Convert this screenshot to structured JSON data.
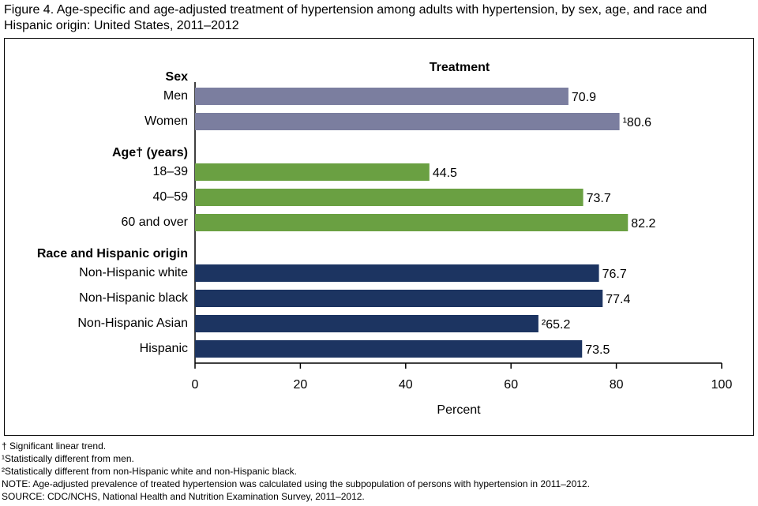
{
  "chart_data": {
    "type": "grouped-hbar",
    "title": "Figure 4. Age-specific and age-adjusted treatment of hypertension among adults with hypertension, by sex, age, and race and Hispanic origin: United States, 2011–2012",
    "subtitle": "Treatment",
    "x_label": "Percent",
    "xlim": [
      0,
      100
    ],
    "xticks": [
      0,
      20,
      40,
      60,
      80,
      100
    ],
    "groups": [
      {
        "name": "Sex",
        "color": "#7b7e9f",
        "categories": [
          "Men",
          "Women"
        ],
        "values": [
          70.9,
          80.6
        ],
        "value_labels": [
          "70.9",
          "¹80.6"
        ]
      },
      {
        "name": "Age† (years)",
        "color": "#6aa042",
        "categories": [
          "18–39",
          "40–59",
          "60 and over"
        ],
        "values": [
          44.5,
          73.7,
          82.2
        ]
      },
      {
        "name": "Race and Hispanic origin",
        "color": "#1c3461",
        "categories": [
          "Non-Hispanic white",
          "Non-Hispanic black",
          "Non-Hispanic Asian",
          "Hispanic"
        ],
        "values": [
          76.7,
          77.4,
          65.2,
          73.5
        ],
        "value_labels": [
          "76.7",
          "77.4",
          "²65.2",
          "73.5"
        ]
      }
    ],
    "footnotes": [
      "† Significant linear trend.",
      "¹Statistically different from men.",
      "²Statistically different from non-Hispanic white and non-Hispanic black.",
      "NOTE: Age-adjusted prevalence of treated hypertension was calculated using the subpopulation of persons with hypertension in 2011–2012.",
      "SOURCE: CDC/NCHS, National Health and Nutrition Examination Survey, 2011–2012."
    ]
  }
}
